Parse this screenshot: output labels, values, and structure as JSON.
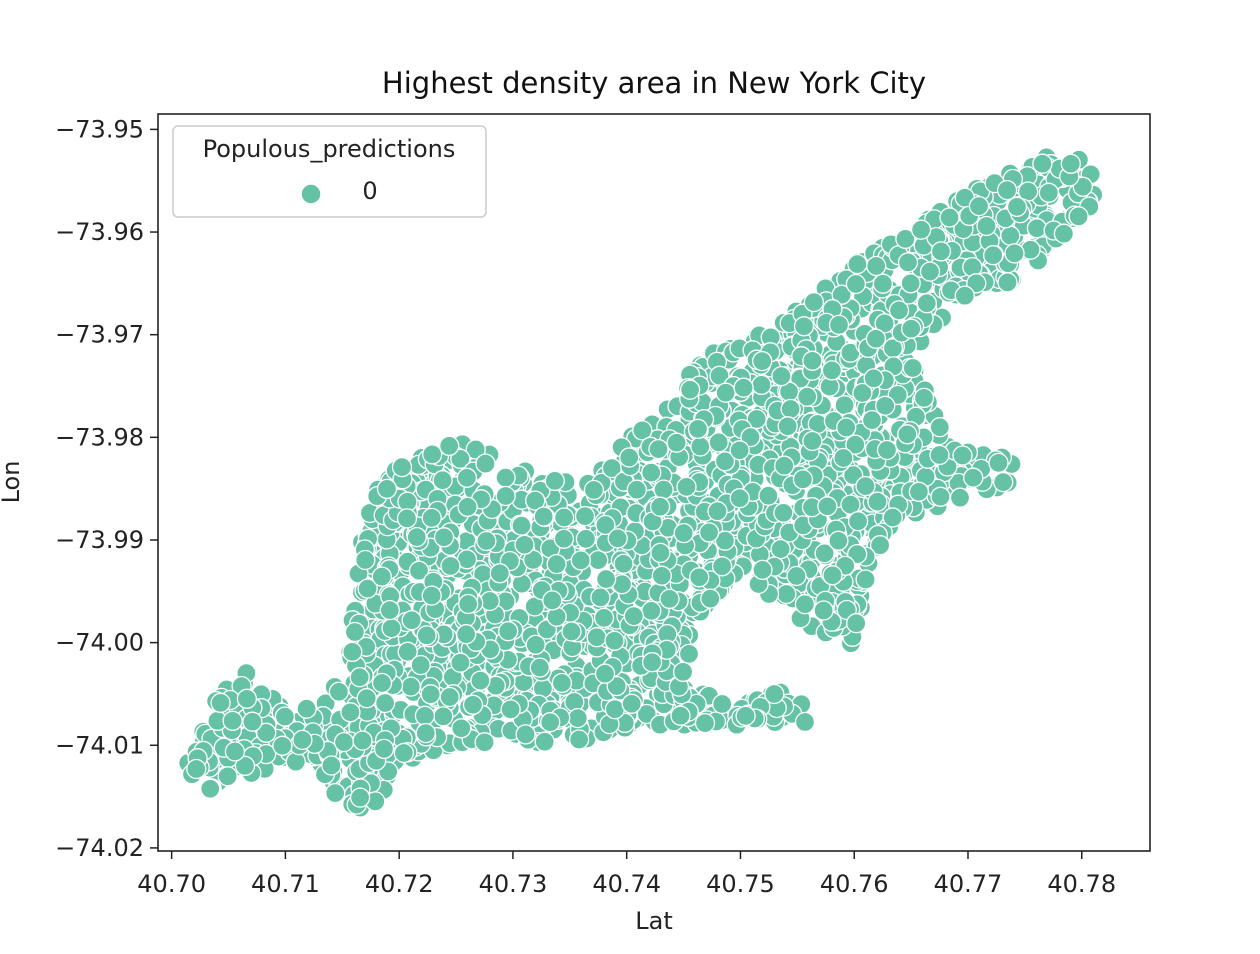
{
  "chart_data": {
    "type": "scatter",
    "title": "Highest density area in New York City",
    "xlabel": "Lat",
    "ylabel": "Lon",
    "xlim": [
      40.6988,
      40.786
    ],
    "ylim": [
      -74.0203,
      -73.9485
    ],
    "xticks": [
      40.7,
      40.71,
      40.72,
      40.73,
      40.74,
      40.75,
      40.76,
      40.77,
      40.78
    ],
    "xtick_labels": [
      "40.70",
      "40.71",
      "40.72",
      "40.73",
      "40.74",
      "40.75",
      "40.76",
      "40.77",
      "40.78"
    ],
    "yticks": [
      -74.02,
      -74.01,
      -74.0,
      -73.99,
      -73.98,
      -73.97,
      -73.96,
      -73.95
    ],
    "ytick_labels": [
      "−74.02",
      "−74.01",
      "−74.00",
      "−73.99",
      "−73.98",
      "−73.97",
      "−73.96",
      "−73.95"
    ],
    "grid": false,
    "legend": {
      "title": "Populous_predictions",
      "placement": "top-left",
      "entries": [
        {
          "label": "0",
          "color": "#66c2a5"
        }
      ]
    },
    "series": [
      {
        "color": "#66c2a5",
        "edge_color": "#ffffff",
        "region_polygon": [
          [
            40.7012,
            -74.0124
          ],
          [
            40.7034,
            -74.006
          ],
          [
            40.7062,
            -74.0025
          ],
          [
            40.709,
            -74.0052
          ],
          [
            40.713,
            -74.006
          ],
          [
            40.7155,
            -74.0025
          ],
          [
            40.7165,
            -73.99
          ],
          [
            40.7182,
            -73.984
          ],
          [
            40.721,
            -73.9822
          ],
          [
            40.725,
            -73.9802
          ],
          [
            40.73,
            -73.9825
          ],
          [
            40.7355,
            -73.9842
          ],
          [
            40.74,
            -73.98
          ],
          [
            40.744,
            -73.9768
          ],
          [
            40.7465,
            -73.972
          ],
          [
            40.751,
            -73.9705
          ],
          [
            40.7545,
            -73.9676
          ],
          [
            40.7585,
            -73.964
          ],
          [
            40.7625,
            -73.9615
          ],
          [
            40.7665,
            -73.9588
          ],
          [
            40.77,
            -73.956
          ],
          [
            40.7745,
            -73.9538
          ],
          [
            40.779,
            -73.951
          ],
          [
            40.7815,
            -73.955
          ],
          [
            40.7802,
            -73.959
          ],
          [
            40.7745,
            -73.9645
          ],
          [
            40.769,
            -73.967
          ],
          [
            40.765,
            -73.972
          ],
          [
            40.768,
            -73.98
          ],
          [
            40.771,
            -73.9805
          ],
          [
            40.775,
            -73.983
          ],
          [
            40.774,
            -73.9845
          ],
          [
            40.769,
            -73.986
          ],
          [
            40.764,
            -73.9885
          ],
          [
            40.761,
            -73.994
          ],
          [
            40.76,
            -74.0005
          ],
          [
            40.7555,
            -73.998
          ],
          [
            40.75,
            -73.993
          ],
          [
            40.746,
            -73.998
          ],
          [
            40.745,
            -74.004
          ],
          [
            40.749,
            -74.006
          ],
          [
            40.7555,
            -74.0042
          ],
          [
            40.756,
            -74.0078
          ],
          [
            40.75,
            -74.008
          ],
          [
            40.743,
            -74.0082
          ],
          [
            40.734,
            -74.0098
          ],
          [
            40.725,
            -74.01
          ],
          [
            40.7195,
            -74.0118
          ],
          [
            40.7185,
            -74.015
          ],
          [
            40.7165,
            -74.0168
          ],
          [
            40.714,
            -74.0152
          ],
          [
            40.713,
            -74.0115
          ],
          [
            40.706,
            -74.013
          ],
          [
            40.7035,
            -74.0145
          ],
          [
            40.7012,
            -74.0124
          ]
        ]
      }
    ]
  }
}
